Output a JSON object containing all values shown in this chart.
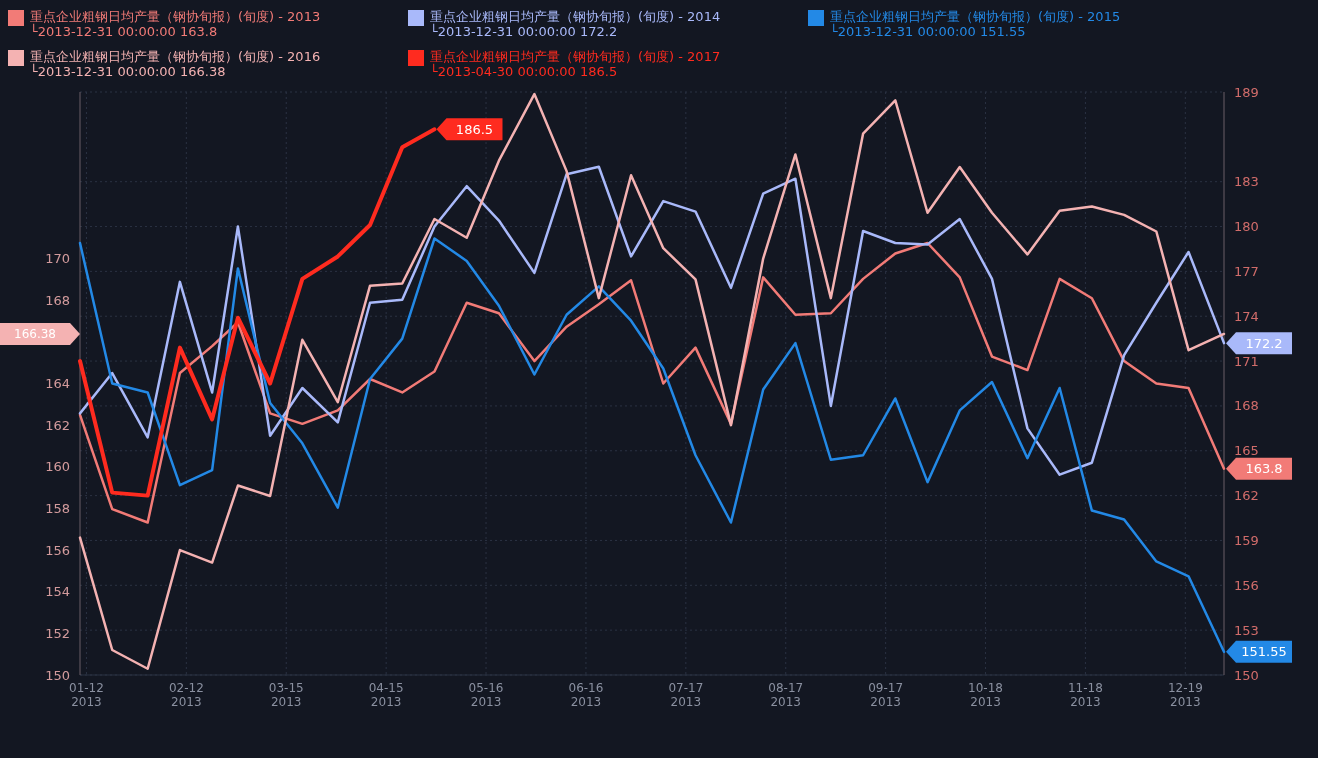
{
  "chart_data": {
    "type": "line",
    "x": [
      "2013-01-10",
      "2013-01-20",
      "2013-01-31",
      "2013-02-10",
      "2013-02-20",
      "2013-02-28",
      "2013-03-10",
      "2013-03-20",
      "2013-03-31",
      "2013-04-10",
      "2013-04-20",
      "2013-04-30",
      "2013-05-10",
      "2013-05-20",
      "2013-05-31",
      "2013-06-10",
      "2013-06-20",
      "2013-06-30",
      "2013-07-10",
      "2013-07-20",
      "2013-07-31",
      "2013-08-10",
      "2013-08-20",
      "2013-08-31",
      "2013-09-10",
      "2013-09-20",
      "2013-09-30",
      "2013-10-10",
      "2013-10-20",
      "2013-10-31",
      "2013-11-10",
      "2013-11-20",
      "2013-11-30",
      "2013-12-10",
      "2013-12-20",
      "2013-12-31"
    ],
    "xlim": [
      "2013-01-10",
      "2013-12-31"
    ],
    "xticks": [
      {
        "value": "2013-01-12",
        "label": "01-12\n2013"
      },
      {
        "value": "2013-02-12",
        "label": "02-12\n2013"
      },
      {
        "value": "2013-03-15",
        "label": "03-15\n2013"
      },
      {
        "value": "2013-04-15",
        "label": "04-15\n2013"
      },
      {
        "value": "2013-05-16",
        "label": "05-16\n2013"
      },
      {
        "value": "2013-06-16",
        "label": "06-16\n2013"
      },
      {
        "value": "2013-07-17",
        "label": "07-17\n2013"
      },
      {
        "value": "2013-08-17",
        "label": "08-17\n2013"
      },
      {
        "value": "2013-09-17",
        "label": "09-17\n2013"
      },
      {
        "value": "2013-10-18",
        "label": "10-18\n2013"
      },
      {
        "value": "2013-11-18",
        "label": "11-18\n2013"
      },
      {
        "value": "2013-12-19",
        "label": "12-19\n2013"
      }
    ],
    "ylim": [
      150,
      178
    ],
    "yticks": [
      150,
      152,
      154,
      156,
      158,
      160,
      162,
      164,
      168,
      170
    ],
    "y2lim": [
      150,
      189
    ],
    "y2ticks": [
      150,
      153,
      156,
      159,
      162,
      165,
      168,
      171,
      174,
      177,
      180,
      183,
      189
    ],
    "grid": true,
    "legend": "top",
    "annotations": [
      "166.38"
    ],
    "series": [
      {
        "name": "重点企业粗钢日均产量（钢协旬报）(旬度) - 2013\n└2013-12-31 00:00:00 163.8",
        "color": "#f27b77",
        "axis": "y2",
        "values": [
          167.4,
          161.1,
          160.2,
          170.2,
          172.0,
          173.6,
          167.5,
          166.8,
          167.7,
          169.8,
          168.9,
          170.3,
          174.9,
          174.2,
          171.0,
          173.3,
          174.8,
          176.4,
          169.5,
          171.9,
          166.8,
          176.6,
          174.1,
          174.2,
          176.5,
          178.2,
          178.9,
          176.6,
          171.3,
          170.4,
          176.5,
          175.2,
          171.0,
          169.5,
          169.2,
          163.8
        ],
        "value_labels": [
          null,
          null,
          null,
          null,
          null,
          null,
          null,
          null,
          null,
          null,
          null,
          null,
          null,
          null,
          null,
          null,
          null,
          null,
          null,
          null,
          null,
          null,
          null,
          null,
          null,
          null,
          null,
          null,
          null,
          null,
          null,
          null,
          null,
          null,
          null,
          "163.8"
        ]
      },
      {
        "name": "重点企业粗钢日均产量（钢协旬报）(旬度) - 2014\n└2013-12-31 00:00:00 172.2",
        "color": "#a9b9fa",
        "axis": "y2",
        "values": [
          167.5,
          170.2,
          165.9,
          176.3,
          168.9,
          180.0,
          166.0,
          169.2,
          166.9,
          174.9,
          175.1,
          180.0,
          182.7,
          180.4,
          176.9,
          183.5,
          184.0,
          178.0,
          181.7,
          181.0,
          175.9,
          182.2,
          183.2,
          168.0,
          179.7,
          178.9,
          178.8,
          180.5,
          176.5,
          166.5,
          163.4,
          164.2,
          171.4,
          174.9,
          178.3,
          172.2
        ],
        "value_labels": [
          null,
          null,
          null,
          null,
          null,
          null,
          null,
          null,
          null,
          null,
          null,
          null,
          null,
          null,
          null,
          null,
          null,
          null,
          null,
          null,
          null,
          null,
          null,
          null,
          null,
          null,
          null,
          null,
          null,
          null,
          null,
          null,
          null,
          null,
          null,
          "172.2"
        ]
      },
      {
        "name": "重点企业粗钢日均产量（钢协旬报）(旬度) - 2015\n└2013-12-31 00:00:00 151.55",
        "color": "#2389e6",
        "axis": "y2",
        "values": [
          178.9,
          169.5,
          168.9,
          162.7,
          163.7,
          177.2,
          168.2,
          165.5,
          161.2,
          169.8,
          172.5,
          179.2,
          177.7,
          174.7,
          170.1,
          174.1,
          176.0,
          173.7,
          170.5,
          164.7,
          160.2,
          169.1,
          172.2,
          164.4,
          164.7,
          168.5,
          162.9,
          167.7,
          169.6,
          164.5,
          169.2,
          161.0,
          160.4,
          157.6,
          156.6,
          151.55
        ],
        "value_labels": [
          null,
          null,
          null,
          null,
          null,
          null,
          null,
          null,
          null,
          null,
          null,
          null,
          null,
          null,
          null,
          null,
          null,
          null,
          null,
          null,
          null,
          null,
          null,
          null,
          null,
          null,
          null,
          null,
          null,
          null,
          null,
          null,
          null,
          null,
          null,
          "151.55"
        ]
      },
      {
        "name": "重点企业粗钢日均产量（钢协旬报）(旬度) - 2016\n└2013-12-31 00:00:00 166.38",
        "color": "#f4b2b2",
        "axis": "y",
        "values": [
          156.6,
          151.2,
          150.3,
          156.0,
          155.4,
          159.1,
          158.6,
          166.1,
          163.1,
          168.7,
          168.8,
          171.9,
          171.0,
          174.7,
          177.9,
          174.2,
          168.1,
          174.0,
          170.5,
          169.0,
          162.0,
          170.0,
          175.0,
          168.1,
          176.0,
          177.6,
          172.2,
          174.4,
          172.2,
          170.2,
          172.3,
          172.5,
          172.1,
          171.3,
          165.6,
          166.38
        ]
      },
      {
        "name": "重点企业粗钢日均产量（钢协旬报）(旬度) - 2017\n└2013-04-30 00:00:00 186.5",
        "color": "#ff2b1f",
        "axis": "y2",
        "x": [
          "2013-01-10",
          "2013-01-20",
          "2013-01-31",
          "2013-02-10",
          "2013-02-20",
          "2013-02-28",
          "2013-03-10",
          "2013-03-20",
          "2013-03-31",
          "2013-04-10",
          "2013-04-20",
          "2013-04-30"
        ],
        "values": [
          171.0,
          162.2,
          162.0,
          171.9,
          167.1,
          173.9,
          169.5,
          176.5,
          178.0,
          180.1,
          185.3,
          186.5
        ],
        "value_labels": [
          null,
          null,
          null,
          null,
          null,
          null,
          null,
          null,
          null,
          null,
          null,
          "186.5"
        ]
      }
    ]
  }
}
